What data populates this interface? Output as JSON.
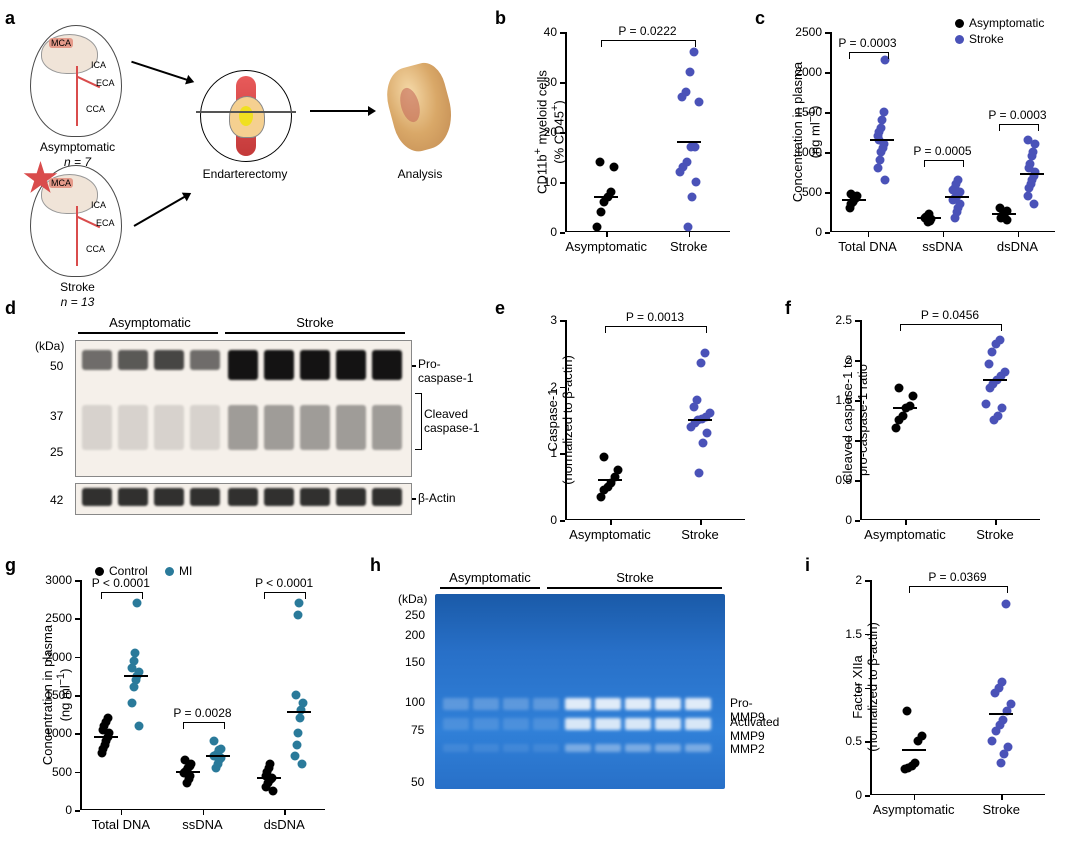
{
  "panel_labels": {
    "a": "a",
    "b": "b",
    "c": "c",
    "d": "d",
    "e": "e",
    "f": "f",
    "g": "g",
    "h": "h",
    "i": "i"
  },
  "colors": {
    "asym": "#000000",
    "stroke": "#4a52b8",
    "mi": "#2a7a9a"
  },
  "a": {
    "asym_label": "Asymptomatic",
    "asym_n": "n = 7",
    "stroke_label": "Stroke",
    "stroke_n": "n = 13",
    "mca": "MCA",
    "ica": "ICA",
    "eca": "ECA",
    "cca": "CCA",
    "endart": "Endarterectomy",
    "analysis": "Analysis"
  },
  "b": {
    "ylabel": "CD11b⁺ myeloid cells\n(% CD45⁺)",
    "ylim": [
      0,
      40
    ],
    "yticks": [
      0,
      10,
      20,
      30,
      40
    ],
    "xlabels": [
      "Asymptomatic",
      "Stroke"
    ],
    "pval": "P = 0.0222",
    "asym": [
      1,
      4,
      6,
      7,
      8,
      13,
      14
    ],
    "asym_mean": 7,
    "stroke": [
      1,
      7,
      10,
      12,
      13,
      14,
      17,
      17,
      26,
      27,
      28,
      32,
      36
    ],
    "stroke_mean": 18
  },
  "c": {
    "ylabel": "Concentration in plasma\n(ng ml⁻¹)",
    "ylim": [
      0,
      2500
    ],
    "yticks": [
      0,
      500,
      1000,
      1500,
      2000,
      2500
    ],
    "legend": {
      "a": "Asymptomatic",
      "s": "Stroke"
    },
    "groups": [
      "Total DNA",
      "ssDNA",
      "dsDNA"
    ],
    "pvals": [
      "P = 0.0003",
      "P = 0.0005",
      "P = 0.0003"
    ],
    "data": {
      "total_a": [
        300,
        350,
        380,
        400,
        420,
        450,
        480
      ],
      "total_a_mean": 400,
      "total_s": [
        650,
        800,
        900,
        1000,
        1050,
        1100,
        1200,
        1250,
        1300,
        1400,
        1500,
        2150,
        1150
      ],
      "total_s_mean": 1150,
      "ss_a": [
        120,
        140,
        160,
        180,
        190,
        200,
        220
      ],
      "ss_a_mean": 175,
      "ss_s": [
        180,
        250,
        300,
        350,
        400,
        420,
        450,
        480,
        500,
        520,
        550,
        600,
        650
      ],
      "ss_s_mean": 440,
      "ds_a": [
        150,
        180,
        200,
        220,
        240,
        260,
        300
      ],
      "ds_a_mean": 220,
      "ds_s": [
        350,
        450,
        550,
        600,
        650,
        700,
        750,
        800,
        850,
        950,
        1000,
        1100,
        1150
      ],
      "ds_s_mean": 720
    }
  },
  "d": {
    "asym": "Asymptomatic",
    "stroke": "Stroke",
    "kda": "(kDa)",
    "markers": [
      "50",
      "37",
      "25",
      "42"
    ],
    "labels": {
      "pro": "Pro-caspase-1",
      "cleaved": "Cleaved\ncaspase-1",
      "actin": "β-Actin"
    }
  },
  "e": {
    "ylabel": "Caspase-1\n(normalized to β-actin)",
    "ylim": [
      0,
      3
    ],
    "yticks": [
      0,
      1,
      2,
      3
    ],
    "xlabels": [
      "Asymptomatic",
      "Stroke"
    ],
    "pval": "P = 0.0013",
    "asym": [
      0.35,
      0.45,
      0.5,
      0.55,
      0.65,
      0.75,
      0.95
    ],
    "asym_mean": 0.6,
    "stroke": [
      0.7,
      1.15,
      1.3,
      1.4,
      1.45,
      1.5,
      1.52,
      1.55,
      1.6,
      1.7,
      1.8,
      2.35,
      2.5
    ],
    "stroke_mean": 1.5
  },
  "f": {
    "ylabel": "Cleaved caspase-1 to\npro-caspase-1 ratio",
    "ylim": [
      0,
      2.5
    ],
    "yticks": [
      0,
      0.5,
      1.0,
      1.5,
      2.0,
      2.5
    ],
    "xlabels": [
      "Asymptomatic",
      "Stroke"
    ],
    "pval": "P = 0.0456",
    "asym": [
      1.15,
      1.25,
      1.3,
      1.4,
      1.42,
      1.55,
      1.65
    ],
    "asym_mean": 1.4,
    "stroke": [
      1.25,
      1.3,
      1.4,
      1.45,
      1.65,
      1.7,
      1.75,
      1.8,
      1.85,
      1.95,
      2.1,
      2.2,
      2.25
    ],
    "stroke_mean": 1.75
  },
  "g": {
    "ylabel": "Concentration in plasma\n(ng ml⁻¹)",
    "ylim": [
      0,
      3000
    ],
    "yticks": [
      0,
      500,
      1000,
      1500,
      2000,
      2500,
      3000
    ],
    "legend": {
      "a": "Control",
      "s": "MI"
    },
    "groups": [
      "Total DNA",
      "ssDNA",
      "dsDNA"
    ],
    "pvals": [
      "P < 0.0001",
      "P = 0.0028",
      "P < 0.0001"
    ],
    "data": {
      "total_a": [
        750,
        800,
        850,
        900,
        950,
        1000,
        1050,
        1100,
        1150,
        1200
      ],
      "total_a_mean": 950,
      "total_s": [
        1100,
        1400,
        1600,
        1700,
        1750,
        1800,
        1850,
        1950,
        2050,
        2700
      ],
      "total_s_mean": 1750,
      "ss_a": [
        350,
        400,
        450,
        480,
        500,
        520,
        550,
        580,
        600,
        650
      ],
      "ss_a_mean": 500,
      "ss_s": [
        550,
        600,
        650,
        680,
        700,
        720,
        750,
        780,
        800,
        900
      ],
      "ss_s_mean": 700,
      "ds_a": [
        250,
        300,
        350,
        380,
        400,
        420,
        450,
        500,
        550,
        600
      ],
      "ds_a_mean": 420,
      "ds_s": [
        600,
        700,
        850,
        1000,
        1200,
        1300,
        1400,
        1500,
        2550,
        2700
      ],
      "ds_s_mean": 1280
    }
  },
  "h": {
    "asym": "Asymptomatic",
    "stroke": "Stroke",
    "kda": "(kDa)",
    "markers": [
      "250",
      "200",
      "150",
      "100",
      "75",
      "50"
    ],
    "labels": {
      "pro": "Pro-MMP9",
      "act": "Activated MMP9",
      "mmp2": "MMP2"
    }
  },
  "i": {
    "ylabel": "Factor XIIa\n(normalized to β-actin)",
    "ylim": [
      0,
      2.0
    ],
    "yticks": [
      0,
      0.5,
      1.0,
      1.5,
      2.0
    ],
    "xlabels": [
      "Asymptomatic",
      "Stroke"
    ],
    "pval": "P = 0.0369",
    "asym": [
      0.24,
      0.25,
      0.27,
      0.3,
      0.5,
      0.55,
      0.78
    ],
    "asym_mean": 0.42,
    "stroke": [
      0.3,
      0.38,
      0.45,
      0.5,
      0.6,
      0.65,
      0.7,
      0.78,
      0.85,
      0.95,
      1.0,
      1.05,
      1.78
    ],
    "stroke_mean": 0.75
  }
}
